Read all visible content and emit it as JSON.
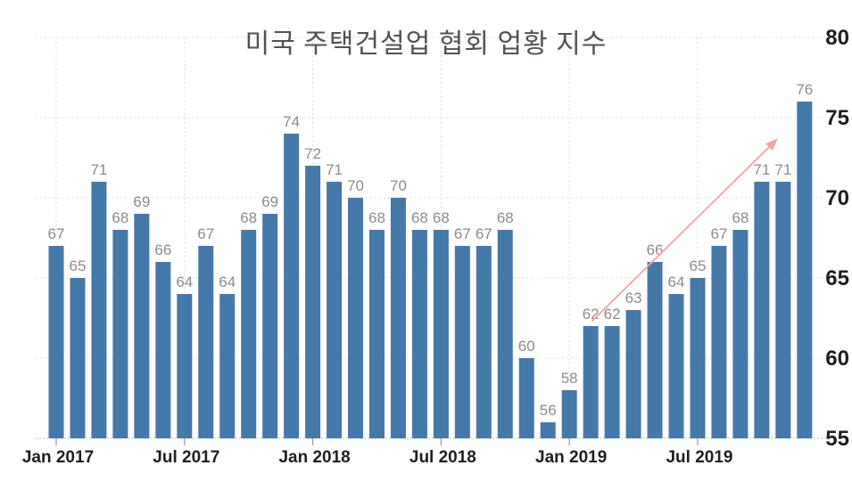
{
  "colors": {
    "background": "#ffffff",
    "bar": "#4579aa",
    "value_label": "#8c8c8c",
    "axis_label": "#1f1f1f",
    "gridline": "#dcdcdc",
    "axis_line": "#c9c9c9",
    "tick_mark": "#9a9a9a",
    "title": "#55514d",
    "trend_arrow": "#f4a5a0"
  },
  "chart_data": {
    "type": "bar",
    "title": "미국 주택건설업 협회 업황 지수",
    "categories": [
      "Jan 2017",
      "Feb 2017",
      "Mar 2017",
      "Apr 2017",
      "May 2017",
      "Jun 2017",
      "Jul 2017",
      "Aug 2017",
      "Sep 2017",
      "Oct 2017",
      "Nov 2017",
      "Dec 2017",
      "Jan 2018",
      "Feb 2018",
      "Mar 2018",
      "Apr 2018",
      "May 2018",
      "Jun 2018",
      "Jul 2018",
      "Aug 2018",
      "Sep 2018",
      "Oct 2018",
      "Nov 2018",
      "Dec 2018",
      "Jan 2019",
      "Feb 2019",
      "Mar 2019",
      "Apr 2019",
      "May 2019",
      "Jun 2019",
      "Jul 2019",
      "Aug 2019",
      "Sep 2019",
      "Oct 2019",
      "Nov 2019",
      "Dec 2019"
    ],
    "values": [
      67,
      65,
      71,
      68,
      69,
      66,
      64,
      67,
      64,
      68,
      69,
      74,
      72,
      71,
      70,
      68,
      70,
      68,
      68,
      67,
      67,
      68,
      60,
      56,
      58,
      62,
      62,
      63,
      66,
      64,
      65,
      67,
      68,
      71,
      71,
      76
    ],
    "bar_value_labels_shown": true,
    "x_ticks": [
      {
        "index": 0,
        "label": "Jan 2017"
      },
      {
        "index": 6,
        "label": "Jul 2017"
      },
      {
        "index": 12,
        "label": "Jan 2018"
      },
      {
        "index": 18,
        "label": "Jul 2018"
      },
      {
        "index": 24,
        "label": "Jan 2019"
      },
      {
        "index": 30,
        "label": "Jul 2019"
      }
    ],
    "y_ticks": [
      55,
      60,
      65,
      70,
      75,
      80
    ],
    "ylim": [
      55,
      80
    ],
    "y_axis_side": "right",
    "grid": "dotted",
    "legend": "none",
    "annotations": [
      {
        "type": "arrow",
        "description": "upward-trend-arrow",
        "from": {
          "month_index": 25.05,
          "value": 62.3
        },
        "to": {
          "month_index": 33.75,
          "value": 73.7
        }
      }
    ]
  }
}
